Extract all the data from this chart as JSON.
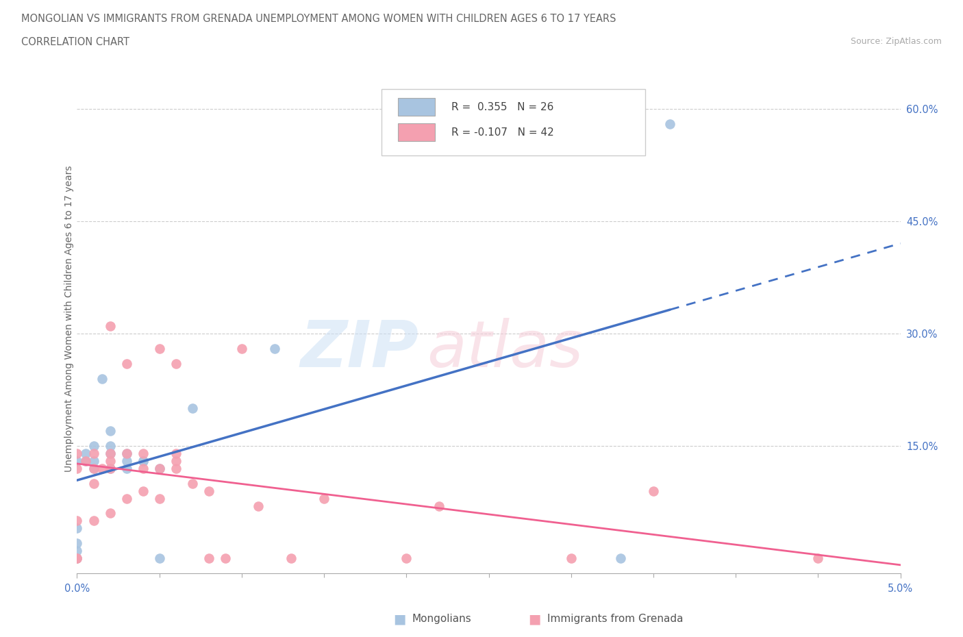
{
  "title_line1": "MONGOLIAN VS IMMIGRANTS FROM GRENADA UNEMPLOYMENT AMONG WOMEN WITH CHILDREN AGES 6 TO 17 YEARS",
  "title_line2": "CORRELATION CHART",
  "source_text": "Source: ZipAtlas.com",
  "ylabel": "Unemployment Among Women with Children Ages 6 to 17 years",
  "xlim": [
    0.0,
    0.05
  ],
  "ylim": [
    -0.02,
    0.66
  ],
  "x_ticks": [
    0.0,
    0.05
  ],
  "x_tick_labels": [
    "0.0%",
    "5.0%"
  ],
  "y_ticks": [
    0.0,
    0.15,
    0.3,
    0.45,
    0.6
  ],
  "y_tick_labels": [
    "",
    "15.0%",
    "30.0%",
    "45.0%",
    "60.0%"
  ],
  "mongolian_R": 0.355,
  "mongolian_N": 26,
  "grenada_R": -0.107,
  "grenada_N": 42,
  "mongolian_color": "#a8c4e0",
  "grenada_color": "#f4a0b0",
  "mongolian_line_color": "#4472c4",
  "grenada_line_color": "#f06090",
  "mongolian_x": [
    0.0,
    0.0,
    0.0,
    0.0,
    0.0,
    0.0005,
    0.0005,
    0.001,
    0.001,
    0.001,
    0.0015,
    0.002,
    0.002,
    0.002,
    0.002,
    0.003,
    0.003,
    0.003,
    0.004,
    0.004,
    0.005,
    0.005,
    0.007,
    0.012,
    0.033,
    0.036
  ],
  "mongolian_y": [
    0.0,
    0.01,
    0.02,
    0.04,
    0.13,
    0.13,
    0.14,
    0.12,
    0.13,
    0.15,
    0.24,
    0.15,
    0.14,
    0.12,
    0.17,
    0.13,
    0.12,
    0.14,
    0.13,
    0.13,
    0.12,
    0.0,
    0.2,
    0.28,
    0.0,
    0.58
  ],
  "grenada_x": [
    0.0,
    0.0,
    0.0,
    0.0,
    0.0,
    0.0005,
    0.001,
    0.001,
    0.001,
    0.001,
    0.0015,
    0.002,
    0.002,
    0.002,
    0.002,
    0.002,
    0.003,
    0.003,
    0.003,
    0.004,
    0.004,
    0.004,
    0.005,
    0.005,
    0.005,
    0.006,
    0.006,
    0.006,
    0.006,
    0.007,
    0.008,
    0.008,
    0.009,
    0.01,
    0.011,
    0.013,
    0.015,
    0.02,
    0.022,
    0.03,
    0.035,
    0.045
  ],
  "grenada_y": [
    0.0,
    0.0,
    0.05,
    0.12,
    0.14,
    0.13,
    0.05,
    0.1,
    0.12,
    0.14,
    0.12,
    0.06,
    0.12,
    0.13,
    0.14,
    0.31,
    0.08,
    0.14,
    0.26,
    0.09,
    0.12,
    0.14,
    0.08,
    0.12,
    0.28,
    0.12,
    0.13,
    0.14,
    0.26,
    0.1,
    0.09,
    0.0,
    0.0,
    0.28,
    0.07,
    0.0,
    0.08,
    0.0,
    0.07,
    0.0,
    0.09,
    0.0
  ],
  "legend_R1_text": "R =  0.355   N = 26",
  "legend_R2_text": "R = -0.107   N = 42",
  "bottom_legend1": "Mongolians",
  "bottom_legend2": "Immigrants from Grenada"
}
